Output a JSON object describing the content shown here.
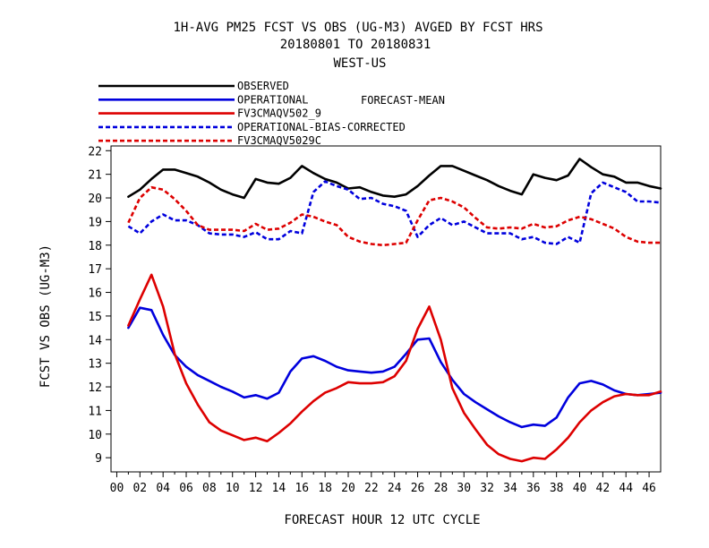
{
  "chart_data": {
    "type": "line",
    "title": "1H-AVG PM25 FCST VS OBS (UG-M3)  AVGED BY FCST HRS",
    "subtitle": "20180801 TO 20180831",
    "region": "WEST-US",
    "xlabel": "FORECAST HOUR  12 UTC CYCLE",
    "ylabel": "FCST VS OBS (UG-M3)",
    "legend_note": "FORECAST-MEAN",
    "legend_position": "top-left",
    "grid": false,
    "xlim": [
      -0.5,
      47
    ],
    "ylim": [
      8.4,
      22.2
    ],
    "x_ticks": [
      "00",
      "02",
      "04",
      "06",
      "08",
      "10",
      "12",
      "14",
      "16",
      "18",
      "20",
      "22",
      "24",
      "26",
      "28",
      "30",
      "32",
      "34",
      "36",
      "38",
      "40",
      "42",
      "44",
      "46"
    ],
    "y_ticks": [
      "9",
      "10",
      "11",
      "12",
      "13",
      "14",
      "15",
      "16",
      "17",
      "18",
      "19",
      "20",
      "21",
      "22"
    ],
    "x": [
      1,
      2,
      3,
      4,
      5,
      6,
      7,
      8,
      9,
      10,
      11,
      12,
      13,
      14,
      15,
      16,
      17,
      18,
      19,
      20,
      21,
      22,
      23,
      24,
      25,
      26,
      27,
      28,
      29,
      30,
      31,
      32,
      33,
      34,
      35,
      36,
      37,
      38,
      39,
      40,
      41,
      42,
      43,
      44,
      45,
      46,
      47
    ],
    "series": [
      {
        "name": "OBSERVED",
        "color": "#000000",
        "dash": "solid",
        "values": [
          20.05,
          20.35,
          20.8,
          21.2,
          21.2,
          21.05,
          20.9,
          20.65,
          20.35,
          20.15,
          20.0,
          20.8,
          20.65,
          20.6,
          20.85,
          21.35,
          21.05,
          20.8,
          20.65,
          20.4,
          20.45,
          20.25,
          20.1,
          20.05,
          20.15,
          20.5,
          20.95,
          21.35,
          21.35,
          21.15,
          20.95,
          20.75,
          20.5,
          20.3,
          20.15,
          21.0,
          20.85,
          20.75,
          20.95,
          21.65,
          21.3,
          21.0,
          20.9,
          20.65,
          20.65,
          20.5,
          20.4
        ]
      },
      {
        "name": "OPERATIONAL",
        "color": "#0000dd",
        "dash": "solid",
        "values": [
          14.5,
          15.35,
          15.25,
          14.2,
          13.35,
          12.85,
          12.5,
          12.25,
          12.0,
          11.8,
          11.55,
          11.65,
          11.5,
          11.75,
          12.65,
          13.2,
          13.3,
          13.1,
          12.85,
          12.7,
          12.65,
          12.6,
          12.65,
          12.85,
          13.4,
          14.0,
          14.05,
          13.05,
          12.3,
          11.7,
          11.35,
          11.05,
          10.75,
          10.5,
          10.3,
          10.4,
          10.35,
          10.7,
          11.55,
          12.15,
          12.25,
          12.1,
          11.85,
          11.7,
          11.65,
          11.7,
          11.75
        ]
      },
      {
        "name": "FV3CMAQV502_9",
        "color": "#dd0000",
        "dash": "solid",
        "values": [
          14.6,
          15.7,
          16.75,
          15.4,
          13.4,
          12.15,
          11.25,
          10.5,
          10.15,
          9.95,
          9.75,
          9.85,
          9.7,
          10.05,
          10.45,
          10.95,
          11.4,
          11.75,
          11.95,
          12.2,
          12.15,
          12.15,
          12.2,
          12.45,
          13.1,
          14.45,
          15.4,
          14.0,
          11.95,
          10.9,
          10.2,
          9.55,
          9.15,
          8.95,
          8.85,
          9.0,
          8.95,
          9.35,
          9.85,
          10.5,
          11.0,
          11.35,
          11.6,
          11.7,
          11.65,
          11.65,
          11.8
        ]
      },
      {
        "name": "OPERATIONAL-BIAS-CORRECTED",
        "color": "#0000dd",
        "dash": "dashed",
        "values": [
          18.8,
          18.5,
          19.0,
          19.3,
          19.05,
          19.05,
          18.85,
          18.5,
          18.45,
          18.45,
          18.35,
          18.55,
          18.25,
          18.25,
          18.6,
          18.5,
          20.25,
          20.7,
          20.5,
          20.35,
          19.95,
          20.0,
          19.75,
          19.65,
          19.45,
          18.35,
          18.85,
          19.15,
          18.85,
          19.0,
          18.75,
          18.5,
          18.5,
          18.5,
          18.25,
          18.35,
          18.1,
          18.05,
          18.35,
          18.1,
          20.2,
          20.65,
          20.45,
          20.25,
          19.85,
          19.85,
          19.8
        ]
      },
      {
        "name": "FV3CMAQV5029C",
        "color": "#dd0000",
        "dash": "dashed",
        "values": [
          18.95,
          20.0,
          20.45,
          20.35,
          19.95,
          19.45,
          18.85,
          18.65,
          18.65,
          18.65,
          18.6,
          18.9,
          18.65,
          18.7,
          18.95,
          19.3,
          19.2,
          19.0,
          18.85,
          18.35,
          18.15,
          18.05,
          18.0,
          18.05,
          18.1,
          19.05,
          19.9,
          20.0,
          19.85,
          19.6,
          19.15,
          18.75,
          18.7,
          18.75,
          18.7,
          18.9,
          18.75,
          18.8,
          19.05,
          19.2,
          19.1,
          18.9,
          18.7,
          18.35,
          18.15,
          18.1,
          18.1
        ]
      }
    ]
  }
}
